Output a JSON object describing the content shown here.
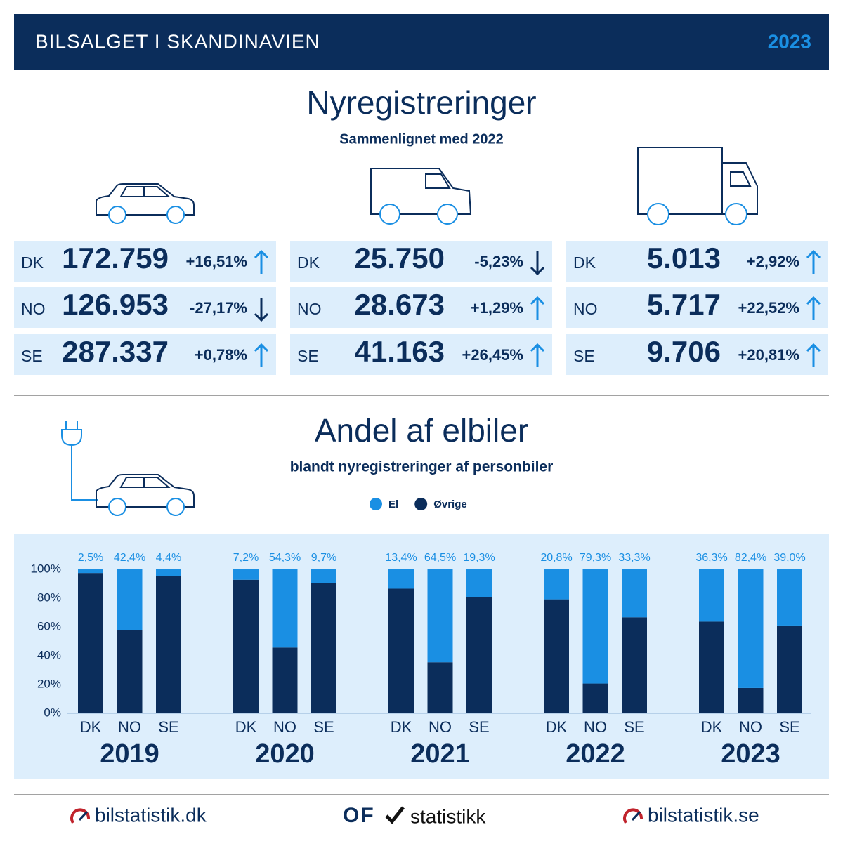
{
  "header": {
    "title": "BILSALGET I SKANDINAVIEN",
    "year": "2023"
  },
  "registrations": {
    "title": "Nyregistreringer",
    "subtitle": "Sammenlignet med 2022",
    "groups": [
      {
        "rows": [
          {
            "country": "DK",
            "value": "172.759",
            "change": "+16,51%",
            "direction": "up"
          },
          {
            "country": "NO",
            "value": "126.953",
            "change": "-27,17%",
            "direction": "down"
          },
          {
            "country": "SE",
            "value": "287.337",
            "change": "+0,78%",
            "direction": "up"
          }
        ]
      },
      {
        "rows": [
          {
            "country": "DK",
            "value": "25.750",
            "change": "-5,23%",
            "direction": "down"
          },
          {
            "country": "NO",
            "value": "28.673",
            "change": "+1,29%",
            "direction": "up"
          },
          {
            "country": "SE",
            "value": "41.163",
            "change": "+26,45%",
            "direction": "up"
          }
        ]
      },
      {
        "rows": [
          {
            "country": "DK",
            "value": "5.013",
            "change": "+2,92%",
            "direction": "up"
          },
          {
            "country": "NO",
            "value": "5.717",
            "change": "+22,52%",
            "direction": "up"
          },
          {
            "country": "SE",
            "value": "9.706",
            "change": "+20,81%",
            "direction": "up"
          }
        ]
      }
    ]
  },
  "chart_data": {
    "type": "bar",
    "stacked": true,
    "title": "Andel af elbiler",
    "subtitle": "blandt nyregistreringer af personbiler",
    "categories": [
      "DK",
      "NO",
      "SE",
      "DK",
      "NO",
      "SE",
      "DK",
      "NO",
      "SE",
      "DK",
      "NO",
      "SE",
      "DK",
      "NO",
      "SE"
    ],
    "groups": [
      "2019",
      "2020",
      "2021",
      "2022",
      "2023"
    ],
    "series": [
      {
        "name": "El",
        "color": "#1a8fe3",
        "values": [
          2.5,
          42.4,
          4.4,
          7.2,
          54.3,
          9.7,
          13.4,
          64.5,
          19.3,
          20.8,
          79.3,
          33.3,
          36.3,
          82.4,
          39.0
        ],
        "value_labels": [
          "2,5%",
          "42,4%",
          "4,4%",
          "7,2%",
          "54,3%",
          "9,7%",
          "13,4%",
          "64,5%",
          "19,3%",
          "20,8%",
          "79,3%",
          "33,3%",
          "36,3%",
          "82,4%",
          "39,0%"
        ]
      },
      {
        "name": "Øvrige",
        "color": "#0b2d5b",
        "values": [
          97.5,
          57.6,
          95.6,
          92.8,
          45.7,
          90.3,
          86.6,
          35.5,
          80.7,
          79.2,
          20.7,
          66.7,
          63.7,
          17.6,
          61.0
        ]
      }
    ],
    "ylim": [
      0,
      100
    ],
    "yticks": [
      {
        "value": 0,
        "label": "0%"
      },
      {
        "value": 20,
        "label": "20%"
      },
      {
        "value": 40,
        "label": "40%"
      },
      {
        "value": 60,
        "label": "60%"
      },
      {
        "value": 80,
        "label": "80%"
      },
      {
        "value": 100,
        "label": "100%"
      }
    ],
    "legend": "top"
  },
  "footer": {
    "left": "bilstatistik.dk",
    "center_mark": "OF",
    "center": "statistikk",
    "right": "bilstatistik.se"
  }
}
